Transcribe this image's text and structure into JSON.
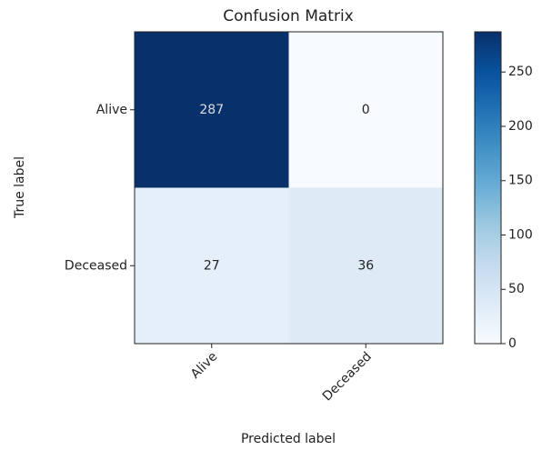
{
  "chart_data": {
    "type": "heatmap",
    "title": "Confusion Matrix",
    "xlabel": "Predicted label",
    "ylabel": "True label",
    "x_categories": [
      "Alive",
      "Deceased"
    ],
    "y_categories": [
      "Alive",
      "Deceased"
    ],
    "values": [
      [
        287,
        0
      ],
      [
        27,
        36
      ]
    ],
    "colormap": "Blues",
    "colorbar_lim": [
      0,
      287
    ],
    "colorbar_ticks": [
      0,
      50,
      100,
      150,
      200,
      250
    ]
  }
}
